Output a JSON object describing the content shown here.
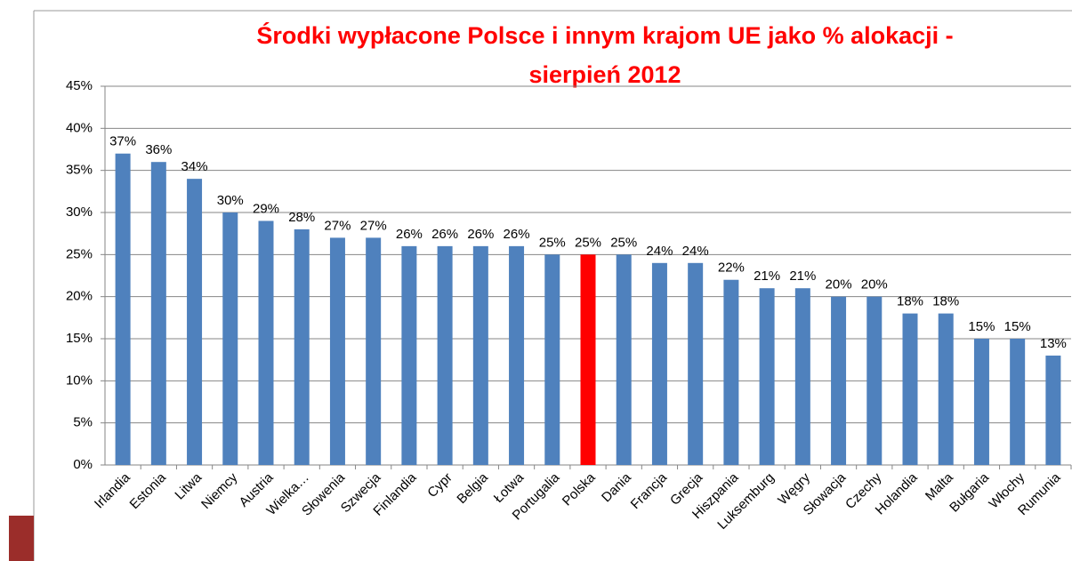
{
  "chart_data": {
    "type": "bar",
    "title": [
      "Środki wypłacone Polsce i innym krajom UE jako % alokacji -",
      "sierpień 2012"
    ],
    "categories": [
      "Irlandia",
      "Estonia",
      "Litwa",
      "Niemcy",
      "Austria",
      "Wielka…",
      "Słowenia",
      "Szwecja",
      "Finlandia",
      "Cypr",
      "Belgia",
      "Łotwa",
      "Portugalia",
      "Polska",
      "Dania",
      "Francja",
      "Grecja",
      "Hiszpania",
      "Luksemburg",
      "Węgry",
      "Słowacja",
      "Czechy",
      "Holandia",
      "Malta",
      "Bułgaria",
      "Włochy",
      "Rumunia"
    ],
    "values": [
      37,
      36,
      34,
      30,
      29,
      28,
      27,
      27,
      26,
      26,
      26,
      26,
      25,
      25,
      25,
      24,
      24,
      22,
      21,
      21,
      20,
      20,
      18,
      18,
      15,
      15,
      13
    ],
    "value_labels": [
      "37%",
      "36%",
      "34%",
      "30%",
      "29%",
      "28%",
      "27%",
      "27%",
      "26%",
      "26%",
      "26%",
      "26%",
      "25%",
      "25%",
      "25%",
      "24%",
      "24%",
      "22%",
      "21%",
      "21%",
      "20%",
      "20%",
      "18%",
      "18%",
      "15%",
      "15%",
      "13%"
    ],
    "colors": [
      "#4f81bd",
      "#4f81bd",
      "#4f81bd",
      "#4f81bd",
      "#4f81bd",
      "#4f81bd",
      "#4f81bd",
      "#4f81bd",
      "#4f81bd",
      "#4f81bd",
      "#4f81bd",
      "#4f81bd",
      "#4f81bd",
      "#ff0000",
      "#4f81bd",
      "#4f81bd",
      "#4f81bd",
      "#4f81bd",
      "#4f81bd",
      "#4f81bd",
      "#4f81bd",
      "#4f81bd",
      "#4f81bd",
      "#4f81bd",
      "#4f81bd",
      "#4f81bd",
      "#4f81bd"
    ],
    "ylim": [
      0,
      45
    ],
    "yticks": [
      {
        "value": 0,
        "label": "0%"
      },
      {
        "value": 5,
        "label": "5%"
      },
      {
        "value": 10,
        "label": "10%"
      },
      {
        "value": 15,
        "label": "15%"
      },
      {
        "value": 20,
        "label": "20%"
      },
      {
        "value": 25,
        "label": "25%"
      },
      {
        "value": 30,
        "label": "30%"
      },
      {
        "value": 35,
        "label": "35%"
      },
      {
        "value": 40,
        "label": "40%"
      },
      {
        "value": 45,
        "label": "45%"
      }
    ],
    "grid": true
  }
}
